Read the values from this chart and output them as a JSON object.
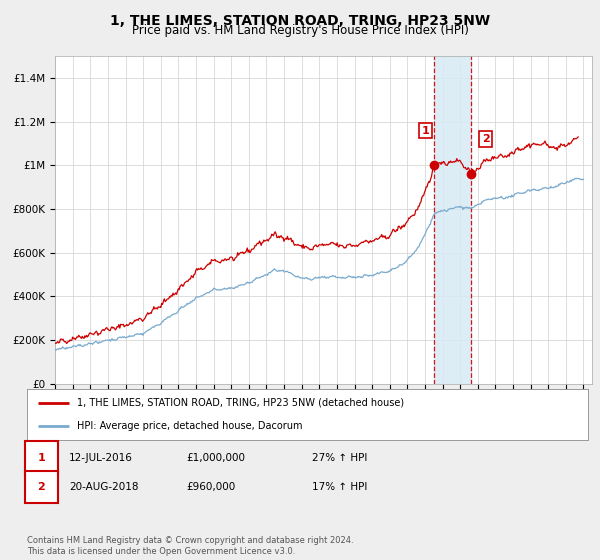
{
  "title": "1, THE LIMES, STATION ROAD, TRING, HP23 5NW",
  "subtitle": "Price paid vs. HM Land Registry's House Price Index (HPI)",
  "title_fontsize": 10,
  "subtitle_fontsize": 8.5,
  "background_color": "#eeeeee",
  "plot_bg_color": "#ffffff",
  "red_line_color": "#cc0000",
  "blue_line_color": "#7aabcf",
  "highlight_fill_color": "#d8eaf5",
  "dashed_line_color": "#cc0000",
  "marker1_year": 2016.53,
  "marker2_year": 2018.64,
  "marker1_value": 1000000,
  "marker2_value": 960000,
  "legend_label1": "1, THE LIMES, STATION ROAD, TRING, HP23 5NW (detached house)",
  "legend_label2": "HPI: Average price, detached house, Dacorum",
  "table_row1": [
    "1",
    "12-JUL-2016",
    "£1,000,000",
    "27% ↑ HPI"
  ],
  "table_row2": [
    "2",
    "20-AUG-2018",
    "£960,000",
    "17% ↑ HPI"
  ],
  "footnote": "Contains HM Land Registry data © Crown copyright and database right 2024.\nThis data is licensed under the Open Government Licence v3.0.",
  "ylim_min": 0,
  "ylim_max": 1500000,
  "xlim_min": 1995,
  "xlim_max": 2025.5,
  "yticks": [
    0,
    200000,
    400000,
    600000,
    800000,
    1000000,
    1200000,
    1400000
  ]
}
